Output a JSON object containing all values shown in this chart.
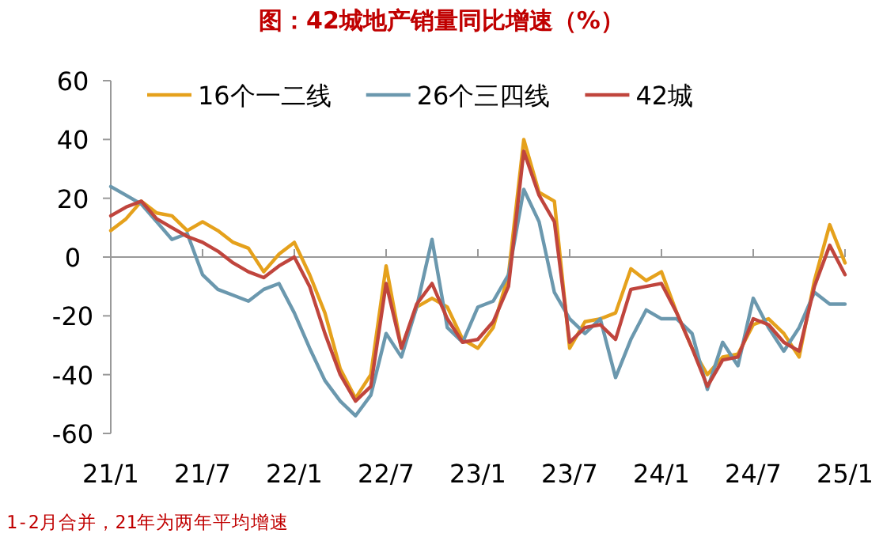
{
  "chart_data": {
    "type": "line",
    "title": "图：42城地产销量同比增速（%）",
    "categories": [
      "21/1",
      null,
      null,
      null,
      null,
      null,
      "21/7",
      null,
      null,
      null,
      null,
      null,
      "22/1",
      null,
      null,
      null,
      null,
      null,
      "22/7",
      null,
      null,
      null,
      null,
      null,
      "23/1",
      null,
      null,
      null,
      null,
      null,
      "23/7",
      null,
      null,
      null,
      null,
      null,
      "24/1",
      null,
      null,
      null,
      null,
      null,
      "24/7",
      null,
      null,
      null,
      null,
      null,
      "25/1"
    ],
    "series": [
      {
        "name": "16个一二线",
        "color": "#e5a11c",
        "values": [
          9,
          13,
          19,
          15,
          14,
          9,
          12,
          9,
          5,
          3,
          -5,
          1,
          5,
          -6,
          -19,
          -38,
          -48,
          -40,
          -3,
          -31,
          -17,
          -14,
          -17,
          -28,
          -31,
          -24,
          -6,
          40,
          22,
          19,
          -31,
          -22,
          -21,
          -19,
          -4,
          -8,
          -5,
          -19,
          -31,
          -40,
          -34,
          -33,
          -23,
          -21,
          -26,
          -34,
          -8,
          11,
          -2
        ]
      },
      {
        "name": "26个三四线",
        "color": "#6b98ae",
        "values": [
          24,
          21,
          18,
          12,
          6,
          8,
          -6,
          -11,
          -13,
          -15,
          -11,
          -9,
          -19,
          -31,
          -42,
          -49,
          -54,
          -47,
          -26,
          -34,
          -17,
          6,
          -24,
          -29,
          -17,
          -15,
          -6,
          23,
          12,
          -12,
          -21,
          -26,
          -21,
          -41,
          -28,
          -18,
          -21,
          -21,
          -26,
          -45,
          -29,
          -37,
          -14,
          -24,
          -32,
          -24,
          -12,
          -16,
          -16
        ]
      },
      {
        "name": "42城",
        "color": "#c0453d",
        "values": [
          14,
          17,
          19,
          13,
          10,
          7,
          5,
          2,
          -2,
          -5,
          -7,
          -3,
          0,
          -10,
          -26,
          -40,
          -49,
          -44,
          -9,
          -31,
          -16,
          -9,
          -21,
          -29,
          -28,
          -22,
          -10,
          36,
          21,
          12,
          -29,
          -24,
          -23,
          -28,
          -11,
          -10,
          -9,
          -19,
          -31,
          -44,
          -35,
          -34,
          -21,
          -23,
          -29,
          -32,
          -10,
          4,
          -6
        ]
      }
    ],
    "ylim": [
      -60,
      60
    ],
    "yticks": [
      -60,
      -40,
      -20,
      0,
      20,
      40,
      60
    ],
    "legend": "top",
    "line_style": "solid",
    "annotations": [
      "1-2月合并，21年为两年平均增速"
    ]
  }
}
